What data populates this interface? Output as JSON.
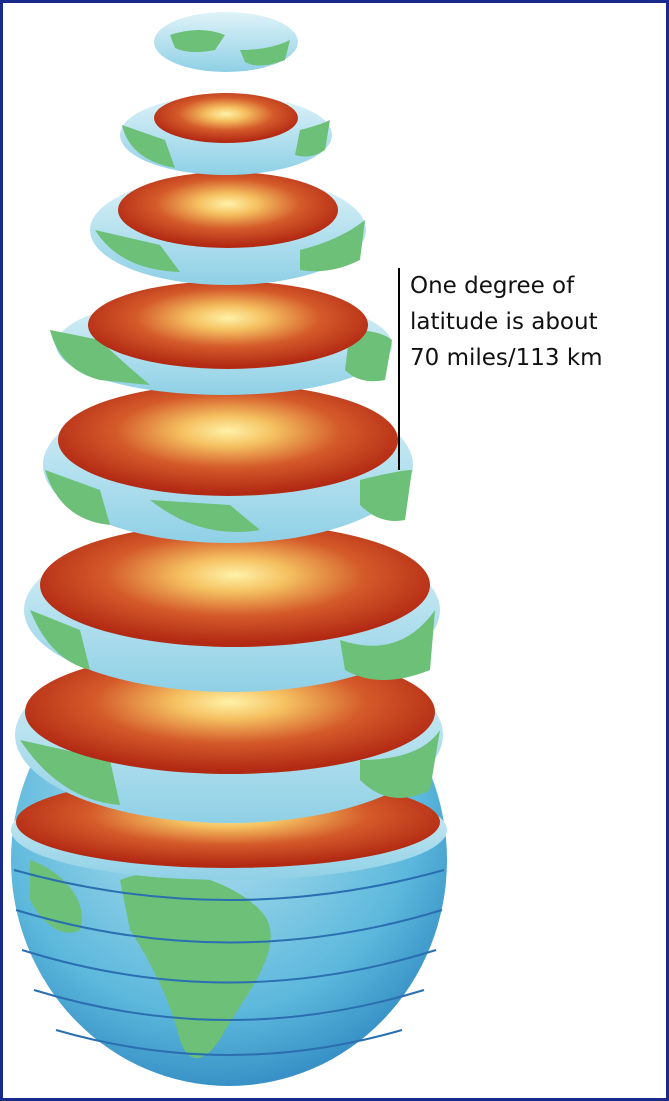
{
  "annotation": {
    "lines": [
      "One degree of",
      "latitude is about",
      "70 miles/113 km"
    ]
  }
}
